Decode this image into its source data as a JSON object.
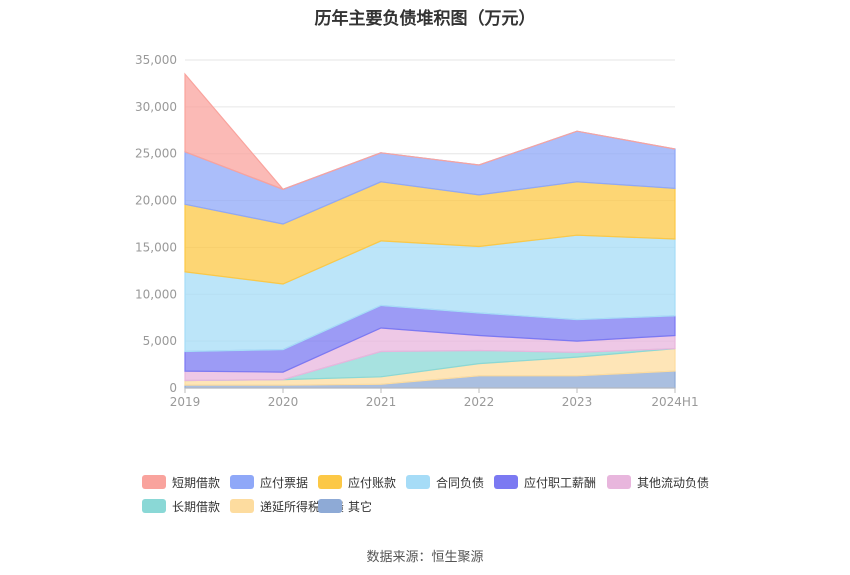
{
  "title": "历年主要负债堆积图（万元）",
  "source": "数据来源：恒生聚源",
  "chart_data": {
    "type": "area",
    "stacked": true,
    "categories": [
      "2019",
      "2020",
      "2021",
      "2022",
      "2023",
      "2024H1"
    ],
    "y_ticks": [
      "0",
      "5,000",
      "10,000",
      "15,000",
      "20,000",
      "25,000",
      "30,000",
      "35,000"
    ],
    "ylim": [
      0,
      35000
    ],
    "grid": true,
    "legend_position": "bottom",
    "series": [
      {
        "name": "短期借款",
        "color": "#f9a39d",
        "values": [
          8300,
          0,
          0,
          0,
          0,
          0
        ]
      },
      {
        "name": "应付票据",
        "color": "#8fa8f8",
        "values": [
          5600,
          3700,
          3100,
          3200,
          5400,
          4200
        ]
      },
      {
        "name": "应付账款",
        "color": "#fcc846",
        "values": [
          7200,
          6400,
          6300,
          5500,
          5700,
          5400
        ]
      },
      {
        "name": "合同负债",
        "color": "#a6dcf7",
        "values": [
          8500,
          7000,
          6900,
          7100,
          9000,
          8200
        ]
      },
      {
        "name": "应付职工薪酬",
        "color": "#7b79f2",
        "values": [
          2100,
          2400,
          2400,
          2400,
          2300,
          2100
        ]
      },
      {
        "name": "其他流动负债",
        "color": "#e8b6dd",
        "values": [
          1000,
          800,
          2500,
          1600,
          1200,
          1400
        ]
      },
      {
        "name": "长期借款",
        "color": "#8ad8d6",
        "values": [
          0,
          0,
          2700,
          1400,
          500,
          0
        ]
      },
      {
        "name": "递延所得税负债",
        "color": "#fddc9f",
        "values": [
          500,
          600,
          800,
          1300,
          2000,
          2400
        ]
      },
      {
        "name": "其它",
        "color": "#8eaad6",
        "values": [
          300,
          300,
          400,
          1300,
          1300,
          1800
        ]
      }
    ]
  }
}
